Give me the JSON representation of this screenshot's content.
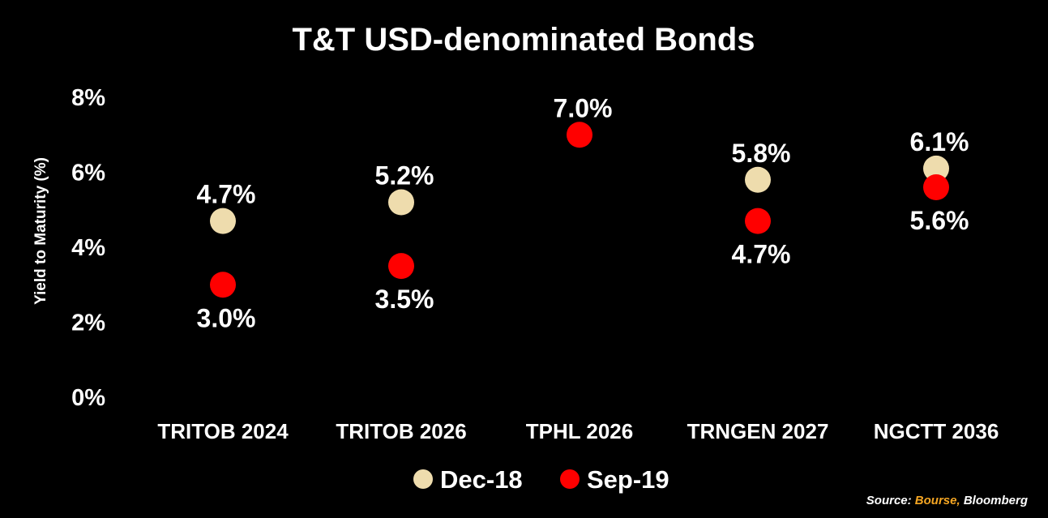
{
  "chart_data": {
    "type": "scatter",
    "title": "T&T USD-denominated Bonds",
    "xlabel": "",
    "ylabel": "Yield to Maturity (%)",
    "ylim": [
      0,
      8
    ],
    "yticks": [
      "0%",
      "2%",
      "4%",
      "6%",
      "8%"
    ],
    "categories": [
      "TRITOB 2024",
      "TRITOB 2026",
      "TPHL 2026",
      "TRNGEN 2027",
      "NGCTT 2036"
    ],
    "series": [
      {
        "name": "Dec-18",
        "color": "#eedcad",
        "values": [
          4.7,
          5.2,
          null,
          5.8,
          6.1
        ],
        "labels": [
          "4.7%",
          "5.2%",
          null,
          "5.8%",
          "6.1%"
        ]
      },
      {
        "name": "Sep-19",
        "color": "#ff0000",
        "values": [
          3.0,
          3.5,
          7.0,
          4.7,
          5.6
        ],
        "labels": [
          "3.0%",
          "3.5%",
          "7.0%",
          "4.7%",
          "5.6%"
        ]
      }
    ],
    "legend_position": "bottom",
    "grid": false
  },
  "source": {
    "prefix": "Source: ",
    "highlight": "Bourse,",
    "rest": " Bloomberg",
    "highlight_color": "#f5a623"
  }
}
